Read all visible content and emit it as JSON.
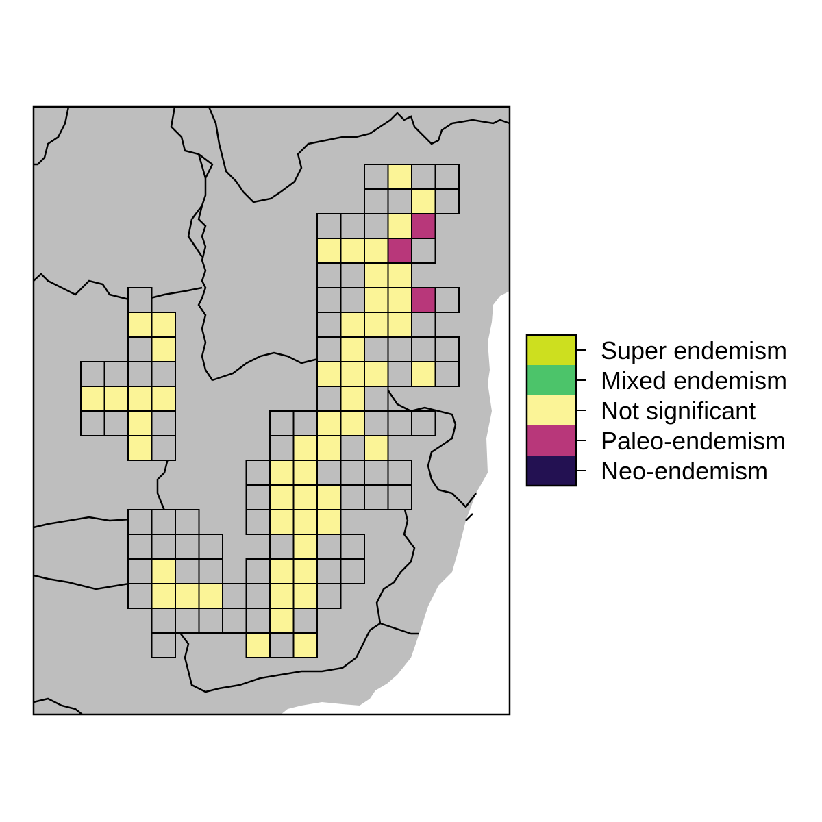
{
  "map": {
    "background_color": "#bebebe",
    "ocean_color": "#ffffff",
    "border_color": "#000000",
    "cell_colors": {
      "super": "#cddf1f",
      "mixed": "#4cc46a",
      "ns": "#fbf497",
      "paleo": "#b8377a",
      "neo": "#231152",
      "empty": "#bebebe"
    }
  },
  "legend": {
    "items": [
      {
        "key": "super",
        "label": "Super endemism",
        "color": "#cddf1f"
      },
      {
        "key": "mixed",
        "label": "Mixed endemism",
        "color": "#4cc46a"
      },
      {
        "key": "ns",
        "label": "Not significant",
        "color": "#fbf497"
      },
      {
        "key": "paleo",
        "label": "Paleo-endemism",
        "color": "#b8377a"
      },
      {
        "key": "neo",
        "label": "Neo-endemism",
        "color": "#231152"
      }
    ]
  },
  "grid_cells": [
    {
      "col": 14,
      "row": 0,
      "cat": "empty"
    },
    {
      "col": 15,
      "row": 0,
      "cat": "ns"
    },
    {
      "col": 16,
      "row": 0,
      "cat": "empty"
    },
    {
      "col": 17,
      "row": 0,
      "cat": "empty"
    },
    {
      "col": 14,
      "row": 1,
      "cat": "empty"
    },
    {
      "col": 15,
      "row": 1,
      "cat": "empty"
    },
    {
      "col": 16,
      "row": 1,
      "cat": "ns"
    },
    {
      "col": 17,
      "row": 1,
      "cat": "empty"
    },
    {
      "col": 12,
      "row": 2,
      "cat": "empty"
    },
    {
      "col": 13,
      "row": 2,
      "cat": "empty"
    },
    {
      "col": 14,
      "row": 2,
      "cat": "empty"
    },
    {
      "col": 15,
      "row": 2,
      "cat": "ns"
    },
    {
      "col": 16,
      "row": 2,
      "cat": "paleo"
    },
    {
      "col": 12,
      "row": 3,
      "cat": "ns"
    },
    {
      "col": 13,
      "row": 3,
      "cat": "ns"
    },
    {
      "col": 14,
      "row": 3,
      "cat": "ns"
    },
    {
      "col": 15,
      "row": 3,
      "cat": "paleo"
    },
    {
      "col": 16,
      "row": 3,
      "cat": "empty"
    },
    {
      "col": 12,
      "row": 4,
      "cat": "empty"
    },
    {
      "col": 13,
      "row": 4,
      "cat": "empty"
    },
    {
      "col": 14,
      "row": 4,
      "cat": "ns"
    },
    {
      "col": 15,
      "row": 4,
      "cat": "ns"
    },
    {
      "col": 12,
      "row": 5,
      "cat": "empty"
    },
    {
      "col": 13,
      "row": 5,
      "cat": "empty"
    },
    {
      "col": 14,
      "row": 5,
      "cat": "ns"
    },
    {
      "col": 15,
      "row": 5,
      "cat": "ns"
    },
    {
      "col": 16,
      "row": 5,
      "cat": "paleo"
    },
    {
      "col": 17,
      "row": 5,
      "cat": "empty"
    },
    {
      "col": 12,
      "row": 6,
      "cat": "empty"
    },
    {
      "col": 13,
      "row": 6,
      "cat": "ns"
    },
    {
      "col": 14,
      "row": 6,
      "cat": "ns"
    },
    {
      "col": 15,
      "row": 6,
      "cat": "ns"
    },
    {
      "col": 16,
      "row": 6,
      "cat": "empty"
    },
    {
      "col": 12,
      "row": 7,
      "cat": "empty"
    },
    {
      "col": 13,
      "row": 7,
      "cat": "ns"
    },
    {
      "col": 14,
      "row": 7,
      "cat": "empty"
    },
    {
      "col": 15,
      "row": 7,
      "cat": "empty"
    },
    {
      "col": 16,
      "row": 7,
      "cat": "empty"
    },
    {
      "col": 17,
      "row": 7,
      "cat": "empty"
    },
    {
      "col": 12,
      "row": 8,
      "cat": "ns"
    },
    {
      "col": 13,
      "row": 8,
      "cat": "ns"
    },
    {
      "col": 14,
      "row": 8,
      "cat": "ns"
    },
    {
      "col": 15,
      "row": 8,
      "cat": "empty"
    },
    {
      "col": 16,
      "row": 8,
      "cat": "ns"
    },
    {
      "col": 17,
      "row": 8,
      "cat": "empty"
    },
    {
      "col": 12,
      "row": 9,
      "cat": "empty"
    },
    {
      "col": 13,
      "row": 9,
      "cat": "ns"
    },
    {
      "col": 14,
      "row": 9,
      "cat": "empty"
    },
    {
      "col": 10,
      "row": 10,
      "cat": "empty"
    },
    {
      "col": 11,
      "row": 10,
      "cat": "empty"
    },
    {
      "col": 12,
      "row": 10,
      "cat": "ns"
    },
    {
      "col": 13,
      "row": 10,
      "cat": "ns"
    },
    {
      "col": 14,
      "row": 10,
      "cat": "empty"
    },
    {
      "col": 15,
      "row": 10,
      "cat": "empty"
    },
    {
      "col": 16,
      "row": 10,
      "cat": "empty"
    },
    {
      "col": 10,
      "row": 11,
      "cat": "empty"
    },
    {
      "col": 11,
      "row": 11,
      "cat": "ns"
    },
    {
      "col": 12,
      "row": 11,
      "cat": "ns"
    },
    {
      "col": 13,
      "row": 11,
      "cat": "empty"
    },
    {
      "col": 14,
      "row": 11,
      "cat": "ns"
    },
    {
      "col": 9,
      "row": 12,
      "cat": "empty"
    },
    {
      "col": 10,
      "row": 12,
      "cat": "ns"
    },
    {
      "col": 11,
      "row": 12,
      "cat": "ns"
    },
    {
      "col": 12,
      "row": 12,
      "cat": "empty"
    },
    {
      "col": 13,
      "row": 12,
      "cat": "empty"
    },
    {
      "col": 14,
      "row": 12,
      "cat": "empty"
    },
    {
      "col": 15,
      "row": 12,
      "cat": "empty"
    },
    {
      "col": 9,
      "row": 13,
      "cat": "empty"
    },
    {
      "col": 10,
      "row": 13,
      "cat": "ns"
    },
    {
      "col": 11,
      "row": 13,
      "cat": "ns"
    },
    {
      "col": 12,
      "row": 13,
      "cat": "ns"
    },
    {
      "col": 13,
      "row": 13,
      "cat": "empty"
    },
    {
      "col": 14,
      "row": 13,
      "cat": "empty"
    },
    {
      "col": 15,
      "row": 13,
      "cat": "empty"
    },
    {
      "col": 9,
      "row": 14,
      "cat": "empty"
    },
    {
      "col": 10,
      "row": 14,
      "cat": "ns"
    },
    {
      "col": 11,
      "row": 14,
      "cat": "ns"
    },
    {
      "col": 12,
      "row": 14,
      "cat": "ns"
    },
    {
      "col": 10,
      "row": 15,
      "cat": "empty"
    },
    {
      "col": 11,
      "row": 15,
      "cat": "ns"
    },
    {
      "col": 12,
      "row": 15,
      "cat": "empty"
    },
    {
      "col": 13,
      "row": 15,
      "cat": "empty"
    },
    {
      "col": 9,
      "row": 16,
      "cat": "empty"
    },
    {
      "col": 10,
      "row": 16,
      "cat": "ns"
    },
    {
      "col": 11,
      "row": 16,
      "cat": "ns"
    },
    {
      "col": 12,
      "row": 16,
      "cat": "empty"
    },
    {
      "col": 13,
      "row": 16,
      "cat": "empty"
    },
    {
      "col": 9,
      "row": 17,
      "cat": "empty"
    },
    {
      "col": 10,
      "row": 17,
      "cat": "ns"
    },
    {
      "col": 11,
      "row": 17,
      "cat": "ns"
    },
    {
      "col": 12,
      "row": 17,
      "cat": "empty"
    },
    {
      "col": 9,
      "row": 18,
      "cat": "empty"
    },
    {
      "col": 10,
      "row": 18,
      "cat": "ns"
    },
    {
      "col": 11,
      "row": 18,
      "cat": "empty"
    },
    {
      "col": 9,
      "row": 19,
      "cat": "ns"
    },
    {
      "col": 10,
      "row": 19,
      "cat": "empty"
    },
    {
      "col": 11,
      "row": 19,
      "cat": "ns"
    },
    {
      "col": 4,
      "row": 5,
      "cat": "empty"
    },
    {
      "col": 4,
      "row": 6,
      "cat": "ns"
    },
    {
      "col": 5,
      "row": 6,
      "cat": "ns"
    },
    {
      "col": 4,
      "row": 7,
      "cat": "empty"
    },
    {
      "col": 5,
      "row": 7,
      "cat": "ns"
    },
    {
      "col": 2,
      "row": 8,
      "cat": "empty"
    },
    {
      "col": 3,
      "row": 8,
      "cat": "empty"
    },
    {
      "col": 4,
      "row": 8,
      "cat": "empty"
    },
    {
      "col": 5,
      "row": 8,
      "cat": "empty"
    },
    {
      "col": 2,
      "row": 9,
      "cat": "ns"
    },
    {
      "col": 3,
      "row": 9,
      "cat": "ns"
    },
    {
      "col": 4,
      "row": 9,
      "cat": "ns"
    },
    {
      "col": 5,
      "row": 9,
      "cat": "ns"
    },
    {
      "col": 2,
      "row": 10,
      "cat": "empty"
    },
    {
      "col": 3,
      "row": 10,
      "cat": "empty"
    },
    {
      "col": 4,
      "row": 10,
      "cat": "ns"
    },
    {
      "col": 5,
      "row": 10,
      "cat": "empty"
    },
    {
      "col": 4,
      "row": 11,
      "cat": "ns"
    },
    {
      "col": 5,
      "row": 11,
      "cat": "empty"
    },
    {
      "col": 4,
      "row": 14,
      "cat": "empty"
    },
    {
      "col": 5,
      "row": 14,
      "cat": "empty"
    },
    {
      "col": 6,
      "row": 14,
      "cat": "empty"
    },
    {
      "col": 4,
      "row": 15,
      "cat": "empty"
    },
    {
      "col": 5,
      "row": 15,
      "cat": "empty"
    },
    {
      "col": 6,
      "row": 15,
      "cat": "empty"
    },
    {
      "col": 7,
      "row": 15,
      "cat": "empty"
    },
    {
      "col": 4,
      "row": 16,
      "cat": "empty"
    },
    {
      "col": 5,
      "row": 16,
      "cat": "ns"
    },
    {
      "col": 6,
      "row": 16,
      "cat": "empty"
    },
    {
      "col": 7,
      "row": 16,
      "cat": "empty"
    },
    {
      "col": 4,
      "row": 17,
      "cat": "empty"
    },
    {
      "col": 5,
      "row": 17,
      "cat": "ns"
    },
    {
      "col": 6,
      "row": 17,
      "cat": "ns"
    },
    {
      "col": 7,
      "row": 17,
      "cat": "ns"
    },
    {
      "col": 8,
      "row": 17,
      "cat": "empty"
    },
    {
      "col": 5,
      "row": 18,
      "cat": "empty"
    },
    {
      "col": 6,
      "row": 18,
      "cat": "empty"
    },
    {
      "col": 7,
      "row": 18,
      "cat": "empty"
    },
    {
      "col": 8,
      "row": 18,
      "cat": "empty"
    },
    {
      "col": 5,
      "row": 19,
      "cat": "empty"
    }
  ]
}
